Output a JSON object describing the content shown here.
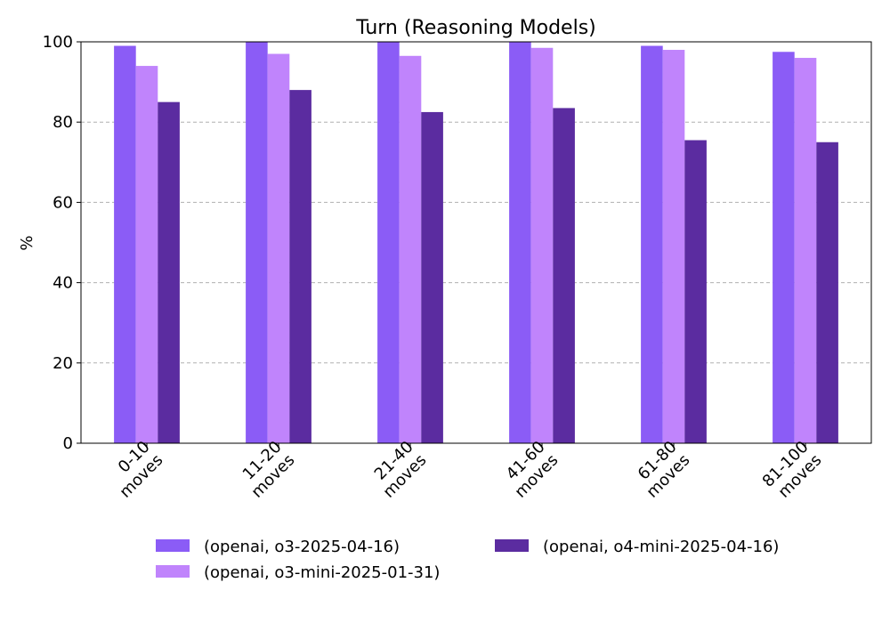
{
  "chart_data": {
    "type": "bar",
    "title": "Turn (Reasoning Models)",
    "xlabel": "",
    "ylabel": "%",
    "ylim": [
      0,
      100
    ],
    "yticks": [
      0,
      20,
      40,
      60,
      80,
      100
    ],
    "grid": "y-dashed",
    "legend_position": "bottom-center",
    "categories": [
      "0-10\nmoves",
      "11-20\nmoves",
      "21-40\nmoves",
      "41-60\nmoves",
      "61-80\nmoves",
      "81-100\nmoves"
    ],
    "series": [
      {
        "name": "(openai, o3-2025-04-16)",
        "color": "#8b5cf6",
        "values": [
          99,
          100,
          100,
          100,
          99,
          97.5
        ]
      },
      {
        "name": "(openai, o3-mini-2025-01-31)",
        "color": "#c084fc",
        "values": [
          94,
          97,
          96.5,
          98.5,
          98,
          96
        ]
      },
      {
        "name": "(openai, o4-mini-2025-04-16)",
        "color": "#5b2ca0",
        "values": [
          85,
          88,
          82.5,
          83.5,
          75.5,
          75
        ]
      }
    ]
  }
}
